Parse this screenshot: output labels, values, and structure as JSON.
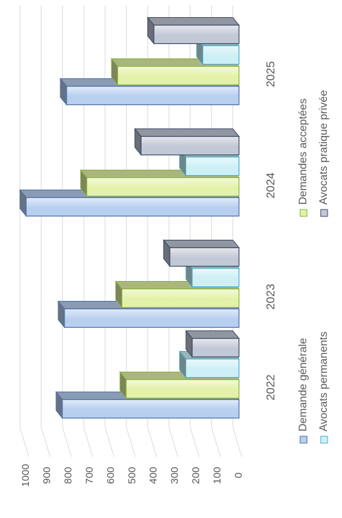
{
  "chart_data": {
    "type": "bar3d",
    "categories": [
      "2022",
      "2023",
      "2024",
      "2025"
    ],
    "series": [
      {
        "name": "Demande générale",
        "color": "#b9cff0",
        "values": [
          830,
          820,
          1000,
          810
        ]
      },
      {
        "name": "Demandes acceptées",
        "color": "#e3f2a8",
        "values": [
          530,
          550,
          715,
          570
        ]
      },
      {
        "name": "Avocats permanents",
        "color": "#cdf0f6",
        "values": [
          250,
          220,
          250,
          170
        ]
      },
      {
        "name": "Avocats pratique privée",
        "color": "#c3c8d6",
        "values": [
          220,
          325,
          460,
          400
        ]
      }
    ],
    "ylim": [
      0,
      1000
    ],
    "yticks": [
      0,
      100,
      200,
      300,
      400,
      500,
      600,
      700,
      800,
      900,
      1000
    ],
    "grid": true
  }
}
